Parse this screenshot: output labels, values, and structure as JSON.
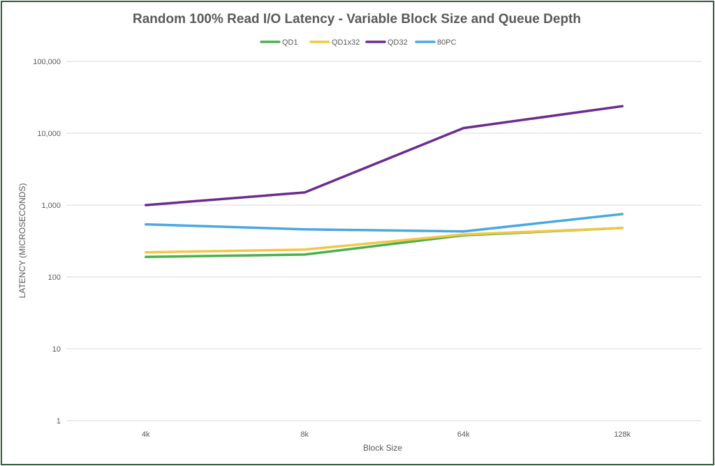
{
  "chart_data": {
    "type": "line",
    "title": "Random 100% Read I/O Latency - Variable Block Size and Queue Depth",
    "xlabel": "Block Size",
    "ylabel": "LATENCY (MICROSECONDS)",
    "yscale": "log",
    "ylim": [
      1,
      100000
    ],
    "yticks": [
      1,
      10,
      100,
      1000,
      10000,
      100000
    ],
    "ytick_labels": [
      "1",
      "10",
      "100",
      "1,000",
      "10,000",
      "100,000"
    ],
    "categories": [
      "4k",
      "8k",
      "64k",
      "128k"
    ],
    "grid": true,
    "legend_position": "top",
    "series": [
      {
        "name": "QD1",
        "color": "#4caf50",
        "values": [
          190,
          205,
          380,
          480
        ]
      },
      {
        "name": "QD1x32",
        "color": "#f2c744",
        "values": [
          220,
          240,
          390,
          480
        ]
      },
      {
        "name": "QD32",
        "color": "#6a2c91",
        "values": [
          1000,
          1500,
          11800,
          23800
        ]
      },
      {
        "name": "80PC",
        "color": "#4aa8e0",
        "values": [
          540,
          460,
          430,
          750
        ]
      }
    ]
  }
}
